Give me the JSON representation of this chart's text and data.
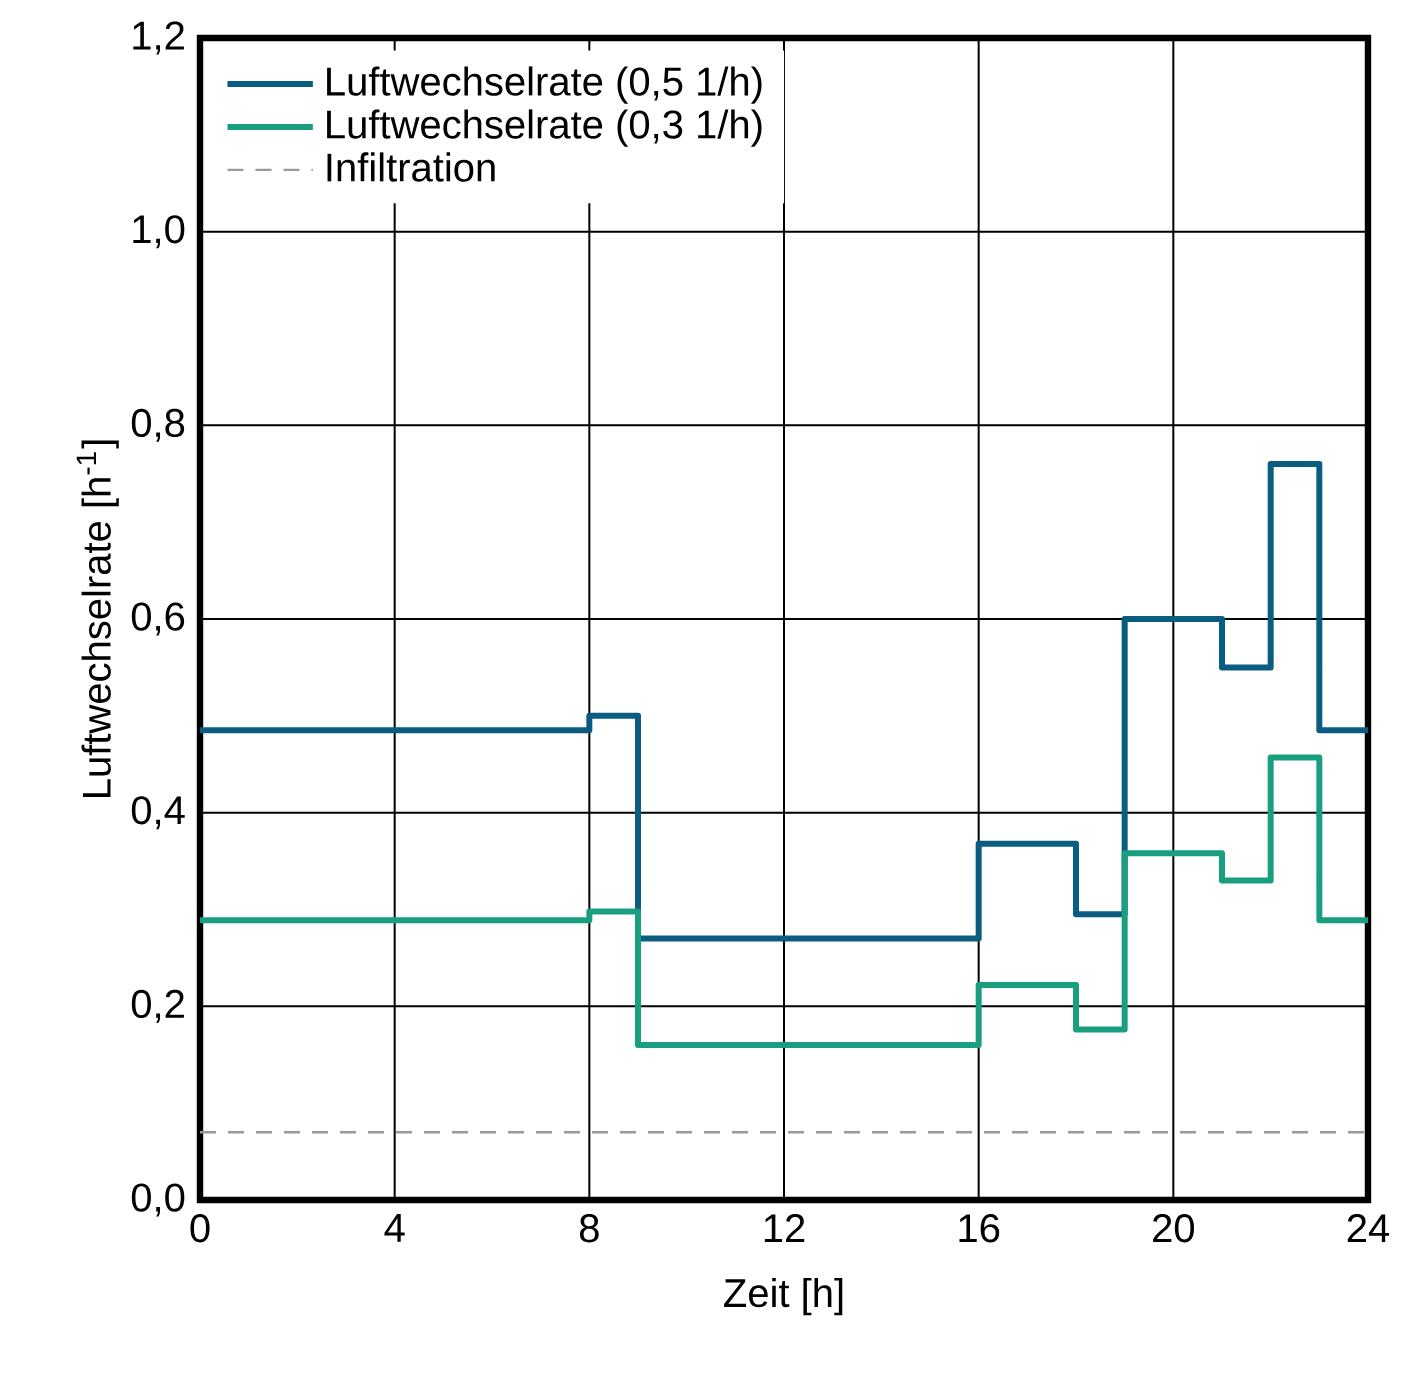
{
  "chart_data": {
    "type": "step",
    "xlabel": "Zeit [h]",
    "ylabel": "Luftwechselrate [h$^{-1}$]",
    "x": [
      0,
      8,
      9,
      16,
      18,
      19,
      21,
      22,
      23,
      24
    ],
    "series": [
      {
        "name": "Luftwechselrate (0,5 1/h)",
        "color": "#0a5c80",
        "values": [
          0.485,
          0.5,
          0.27,
          0.368,
          0.295,
          0.6,
          0.55,
          0.76,
          0.485,
          0.485
        ]
      },
      {
        "name": "Luftwechselrate (0,3 1/h)",
        "color": "#1a9e80",
        "values": [
          0.289,
          0.298,
          0.16,
          0.222,
          0.176,
          0.358,
          0.33,
          0.457,
          0.289,
          0.289
        ]
      }
    ],
    "ref_lines": [
      {
        "axis": "y",
        "value": 0.07,
        "label": "Infiltration",
        "color": "#999999",
        "line_style": "dashed"
      }
    ],
    "xlim": [
      0,
      24
    ],
    "ylim": [
      0,
      1.2
    ],
    "xticks": [
      0,
      4,
      8,
      12,
      16,
      20,
      24
    ],
    "yticks": [
      {
        "value": 0,
        "label": "0,0"
      },
      {
        "value": 0.2,
        "label": "0,2"
      },
      {
        "value": 0.4,
        "label": "0,4"
      },
      {
        "value": 0.6,
        "label": "0,6"
      },
      {
        "value": 0.8,
        "label": "0,8"
      },
      {
        "value": 1.0,
        "label": "1,0"
      },
      {
        "value": 1.2,
        "label": "1,2"
      }
    ],
    "grid": true,
    "legend": "top left"
  }
}
